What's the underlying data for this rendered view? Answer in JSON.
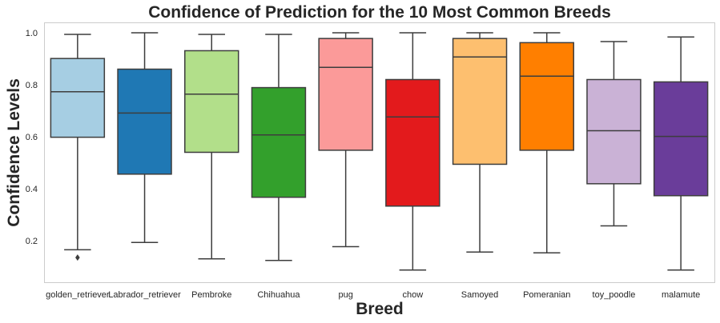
{
  "chart_data": {
    "type": "box",
    "title": "Confidence of Prediction for the 10 Most Common Breeds",
    "xlabel": "Breed",
    "ylabel": "Confidence Levels",
    "ylim": [
      0.04,
      1.04
    ],
    "yticks": [
      0.2,
      0.4,
      0.6,
      0.8,
      1.0
    ],
    "ytick_labels": [
      "0.2",
      "0.4",
      "0.6",
      "0.8",
      "1.0"
    ],
    "grid": false,
    "categories": [
      "golden_retriever",
      "Labrador_retriever",
      "Pembroke",
      "Chihuahua",
      "pug",
      "chow",
      "Samoyed",
      "Pomeranian",
      "toy_poodle",
      "malamute"
    ],
    "colors": [
      "#a6cee3",
      "#1f78b4",
      "#b2df8a",
      "#33a02c",
      "#fb9a99",
      "#e31a1c",
      "#fdbf6f",
      "#ff7f00",
      "#cab2d6",
      "#6a3d9a"
    ],
    "boxes": [
      {
        "whisker_low": 0.165,
        "q1": 0.598,
        "median": 0.773,
        "q3": 0.901,
        "whisker_high": 0.994,
        "outliers": [
          0.135
        ]
      },
      {
        "whisker_low": 0.193,
        "q1": 0.456,
        "median": 0.691,
        "q3": 0.86,
        "whisker_high": 1.0,
        "outliers": []
      },
      {
        "whisker_low": 0.13,
        "q1": 0.54,
        "median": 0.764,
        "q3": 0.931,
        "whisker_high": 0.994,
        "outliers": []
      },
      {
        "whisker_low": 0.124,
        "q1": 0.367,
        "median": 0.607,
        "q3": 0.789,
        "whisker_high": 0.994,
        "outliers": []
      },
      {
        "whisker_low": 0.177,
        "q1": 0.548,
        "median": 0.867,
        "q3": 0.978,
        "whisker_high": 1.0,
        "outliers": []
      },
      {
        "whisker_low": 0.087,
        "q1": 0.333,
        "median": 0.676,
        "q3": 0.82,
        "whisker_high": 1.0,
        "outliers": []
      },
      {
        "whisker_low": 0.156,
        "q1": 0.494,
        "median": 0.907,
        "q3": 0.978,
        "whisker_high": 1.0,
        "outliers": []
      },
      {
        "whisker_low": 0.153,
        "q1": 0.548,
        "median": 0.833,
        "q3": 0.962,
        "whisker_high": 1.0,
        "outliers": []
      },
      {
        "whisker_low": 0.257,
        "q1": 0.419,
        "median": 0.623,
        "q3": 0.82,
        "whisker_high": 0.966,
        "outliers": []
      },
      {
        "whisker_low": 0.087,
        "q1": 0.373,
        "median": 0.601,
        "q3": 0.811,
        "whisker_high": 0.984,
        "outliers": []
      }
    ]
  }
}
